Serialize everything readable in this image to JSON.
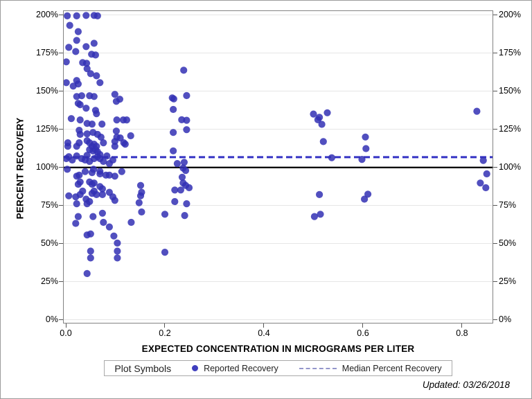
{
  "figure": {
    "xlabel": "EXPECTED CONCENTRATION IN MICROGRAMS PER LITER",
    "ylabel": "PERCENT RECOVERY",
    "footnote": "Updated: 03/26/2018",
    "legend": {
      "title": "Plot Symbols",
      "symbol_entry": "Reported Recovery",
      "line_entry": "Median Percent Recovery"
    }
  },
  "chart_data": {
    "type": "scatter",
    "title": "",
    "xlabel": "EXPECTED CONCENTRATION IN MICROGRAMS PER LITER",
    "ylabel": "PERCENT RECOVERY",
    "xlim": [
      -0.0056,
      0.863
    ],
    "ylim": [
      -2.4,
      203.1
    ],
    "grid": "horizontal",
    "legend_position": "bottom",
    "x_ticks": [
      0.0,
      0.2,
      0.4,
      0.6,
      0.8
    ],
    "x_tick_labels": [
      "0.0",
      "0.2",
      "0.4",
      "0.6",
      "0.8"
    ],
    "y_ticks": [
      0,
      25,
      50,
      75,
      100,
      125,
      150,
      175,
      200
    ],
    "y_tick_labels": [
      "0%",
      "25%",
      "50%",
      "75%",
      "100%",
      "125%",
      "150%",
      "175%",
      "200%"
    ],
    "marker_color": "#3230b4",
    "reference_lines": [
      {
        "name": "Median Percent Recovery",
        "value": 106.8,
        "style": "dashed",
        "color": "#3533c4",
        "width": 3
      },
      {
        "name": "100 Percent Recovery",
        "value": 100,
        "style": "solid",
        "color": "#000000",
        "width": 2.2
      }
    ],
    "series": [
      {
        "name": "Reported Recovery",
        "points": [
          [
            0.003,
            199.5
          ],
          [
            0.022,
            199.5
          ],
          [
            0.041,
            199.8
          ],
          [
            0.057,
            199.8
          ],
          [
            0.064,
            199.5
          ],
          [
            0.008,
            193.3
          ],
          [
            0.025,
            189.2
          ],
          [
            0.022,
            183.4
          ],
          [
            0.006,
            178.8
          ],
          [
            0.02,
            176.1
          ],
          [
            0.041,
            179.3
          ],
          [
            0.057,
            181.5
          ],
          [
            0.052,
            174.3
          ],
          [
            0.06,
            173.8
          ],
          [
            0.001,
            169.3
          ],
          [
            0.034,
            168.8
          ],
          [
            0.042,
            168.4
          ],
          [
            0.043,
            164.8
          ],
          [
            0.05,
            161.6
          ],
          [
            0.062,
            160.2
          ],
          [
            0.022,
            157.1
          ],
          [
            0.025,
            154.8
          ],
          [
            0.001,
            155.7
          ],
          [
            0.015,
            153.4
          ],
          [
            0.069,
            155.7
          ],
          [
            0.099,
            148.0
          ],
          [
            0.102,
            143.4
          ],
          [
            0.109,
            144.8
          ],
          [
            0.022,
            146.6
          ],
          [
            0.032,
            147.1
          ],
          [
            0.048,
            147.1
          ],
          [
            0.057,
            146.6
          ],
          [
            0.025,
            142.1
          ],
          [
            0.029,
            141.2
          ],
          [
            0.041,
            138.9
          ],
          [
            0.06,
            137.5
          ],
          [
            0.062,
            135.3
          ],
          [
            0.011,
            132.1
          ],
          [
            0.029,
            131.2
          ],
          [
            0.043,
            128.9
          ],
          [
            0.053,
            128.5
          ],
          [
            0.073,
            128.5
          ],
          [
            0.103,
            131.2
          ],
          [
            0.116,
            131.2
          ],
          [
            0.123,
            131.2
          ],
          [
            0.027,
            124.4
          ],
          [
            0.043,
            122.1
          ],
          [
            0.055,
            123.0
          ],
          [
            0.071,
            119.9
          ],
          [
            0.102,
            123.9
          ],
          [
            0.103,
            119.9
          ],
          [
            0.11,
            119.4
          ],
          [
            0.131,
            120.8
          ],
          [
            0.029,
            121.7
          ],
          [
            0.064,
            121.7
          ],
          [
            0.004,
            113.9
          ],
          [
            0.022,
            113.9
          ],
          [
            0.043,
            117.6
          ],
          [
            0.048,
            116.2
          ],
          [
            0.053,
            113.9
          ],
          [
            0.057,
            115.3
          ],
          [
            0.062,
            113.9
          ],
          [
            0.099,
            117.1
          ],
          [
            0.099,
            113.9
          ],
          [
            0.12,
            115.3
          ],
          [
            0.004,
            116.2
          ],
          [
            0.027,
            116.2
          ],
          [
            0.076,
            116.2
          ],
          [
            0.117,
            116.2
          ],
          [
            0.048,
            111.7
          ],
          [
            0.055,
            110.8
          ],
          [
            0.06,
            111.7
          ],
          [
            0.064,
            110.3
          ],
          [
            0.069,
            108.5
          ],
          [
            0.043,
            108.0
          ],
          [
            0.006,
            107.1
          ],
          [
            0.001,
            105.8
          ],
          [
            0.013,
            104.9
          ],
          [
            0.032,
            105.8
          ],
          [
            0.039,
            104.9
          ],
          [
            0.048,
            104.0
          ],
          [
            0.057,
            105.8
          ],
          [
            0.064,
            107.1
          ],
          [
            0.069,
            105.8
          ],
          [
            0.076,
            104.0
          ],
          [
            0.088,
            102.6
          ],
          [
            0.095,
            104.9
          ],
          [
            0.022,
            107.6
          ],
          [
            0.083,
            107.6
          ],
          [
            0.003,
            98.8
          ],
          [
            0.056,
            98.8
          ],
          [
            0.069,
            97.5
          ],
          [
            0.039,
            97.3
          ],
          [
            0.053,
            96.6
          ],
          [
            0.113,
            97.3
          ],
          [
            0.027,
            95.0
          ],
          [
            0.069,
            95.8
          ],
          [
            0.081,
            95.0
          ],
          [
            0.088,
            95.0
          ],
          [
            0.099,
            94.3
          ],
          [
            0.022,
            94.3
          ],
          [
            0.025,
            89.0
          ],
          [
            0.029,
            90.5
          ],
          [
            0.048,
            90.5
          ],
          [
            0.053,
            89.0
          ],
          [
            0.057,
            89.8
          ],
          [
            0.069,
            87.5
          ],
          [
            0.074,
            86.0
          ],
          [
            0.151,
            88.2
          ],
          [
            0.006,
            81.4
          ],
          [
            0.02,
            80.7
          ],
          [
            0.029,
            82.2
          ],
          [
            0.034,
            84.5
          ],
          [
            0.041,
            79.2
          ],
          [
            0.048,
            77.6
          ],
          [
            0.053,
            83.0
          ],
          [
            0.057,
            84.5
          ],
          [
            0.062,
            82.2
          ],
          [
            0.074,
            82.2
          ],
          [
            0.088,
            83.7
          ],
          [
            0.095,
            80.7
          ],
          [
            0.099,
            78.4
          ],
          [
            0.153,
            83.7
          ],
          [
            0.151,
            81.4
          ],
          [
            0.022,
            76.2
          ],
          [
            0.043,
            76.2
          ],
          [
            0.148,
            76.9
          ],
          [
            0.025,
            67.8
          ],
          [
            0.055,
            67.8
          ],
          [
            0.074,
            70.0
          ],
          [
            0.076,
            64.0
          ],
          [
            0.02,
            63.3
          ],
          [
            0.088,
            61.0
          ],
          [
            0.132,
            64.0
          ],
          [
            0.153,
            70.8
          ],
          [
            0.043,
            55.7
          ],
          [
            0.05,
            56.4
          ],
          [
            0.097,
            55.0
          ],
          [
            0.104,
            50.4
          ],
          [
            0.104,
            45.1
          ],
          [
            0.104,
            40.6
          ],
          [
            0.05,
            45.1
          ],
          [
            0.05,
            40.6
          ],
          [
            0.043,
            30.4
          ],
          [
            0.238,
            163.8
          ],
          [
            0.215,
            145.7
          ],
          [
            0.244,
            147.2
          ],
          [
            0.218,
            145.0
          ],
          [
            0.217,
            138.1
          ],
          [
            0.234,
            131.3
          ],
          [
            0.244,
            131.0
          ],
          [
            0.244,
            124.8
          ],
          [
            0.217,
            123.0
          ],
          [
            0.217,
            110.9
          ],
          [
            0.225,
            102.6
          ],
          [
            0.239,
            103.4
          ],
          [
            0.237,
            99.6
          ],
          [
            0.242,
            98.0
          ],
          [
            0.235,
            93.6
          ],
          [
            0.237,
            89.8
          ],
          [
            0.242,
            88.2
          ],
          [
            0.249,
            86.7
          ],
          [
            0.22,
            85.2
          ],
          [
            0.232,
            85.2
          ],
          [
            0.22,
            77.6
          ],
          [
            0.244,
            76.2
          ],
          [
            0.2,
            69.3
          ],
          [
            0.24,
            68.5
          ],
          [
            0.2,
            44.4
          ],
          [
            0.5,
            135.1
          ],
          [
            0.512,
            132.9
          ],
          [
            0.509,
            131.3
          ],
          [
            0.517,
            128.3
          ],
          [
            0.528,
            135.9
          ],
          [
            0.52,
            117.0
          ],
          [
            0.537,
            106.4
          ],
          [
            0.512,
            82.2
          ],
          [
            0.502,
            67.8
          ],
          [
            0.514,
            69.3
          ],
          [
            0.605,
            120.0
          ],
          [
            0.606,
            112.4
          ],
          [
            0.598,
            105.3
          ],
          [
            0.603,
            79.2
          ],
          [
            0.61,
            82.5
          ],
          [
            0.83,
            136.9
          ],
          [
            0.843,
            104.6
          ],
          [
            0.85,
            95.8
          ],
          [
            0.837,
            89.8
          ],
          [
            0.848,
            86.7
          ]
        ]
      }
    ]
  }
}
